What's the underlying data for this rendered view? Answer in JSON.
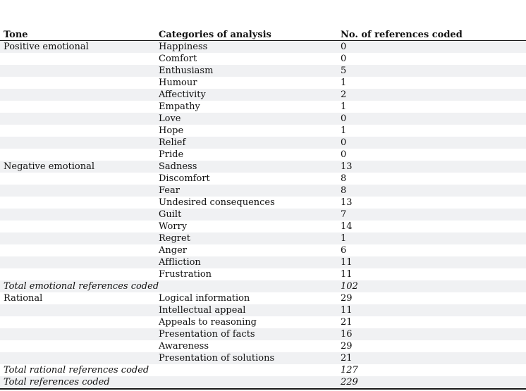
{
  "colors": {
    "row_shade": "#f0f1f3",
    "rule": "#1a1a1a"
  },
  "table": {
    "columns": [
      "Tone",
      "Categories of analysis",
      "No. of references coded"
    ],
    "rows": [
      {
        "tone": "Positive emotional",
        "category": "Happiness",
        "count": "0",
        "total": false
      },
      {
        "tone": "",
        "category": "Comfort",
        "count": "0",
        "total": false
      },
      {
        "tone": "",
        "category": "Enthusiasm",
        "count": "5",
        "total": false
      },
      {
        "tone": "",
        "category": "Humour",
        "count": "1",
        "total": false
      },
      {
        "tone": "",
        "category": "Affectivity",
        "count": "2",
        "total": false
      },
      {
        "tone": "",
        "category": "Empathy",
        "count": "1",
        "total": false
      },
      {
        "tone": "",
        "category": "Love",
        "count": "0",
        "total": false
      },
      {
        "tone": "",
        "category": "Hope",
        "count": "1",
        "total": false
      },
      {
        "tone": "",
        "category": "Relief",
        "count": "0",
        "total": false
      },
      {
        "tone": "",
        "category": "Pride",
        "count": "0",
        "total": false
      },
      {
        "tone": "Negative emotional",
        "category": "Sadness",
        "count": "13",
        "total": false
      },
      {
        "tone": "",
        "category": "Discomfort",
        "count": "8",
        "total": false
      },
      {
        "tone": "",
        "category": "Fear",
        "count": "8",
        "total": false
      },
      {
        "tone": "",
        "category": "Undesired consequences",
        "count": "13",
        "total": false
      },
      {
        "tone": "",
        "category": "Guilt",
        "count": "7",
        "total": false
      },
      {
        "tone": "",
        "category": "Worry",
        "count": "14",
        "total": false
      },
      {
        "tone": "",
        "category": "Regret",
        "count": "1",
        "total": false
      },
      {
        "tone": "",
        "category": "Anger",
        "count": "6",
        "total": false
      },
      {
        "tone": "",
        "category": "Affliction",
        "count": "11",
        "total": false
      },
      {
        "tone": "",
        "category": "Frustration",
        "count": "11",
        "total": false
      },
      {
        "tone": "Total emotional references coded",
        "category": "",
        "count": "102",
        "total": true
      },
      {
        "tone": "Rational",
        "category": "Logical information",
        "count": "29",
        "total": false
      },
      {
        "tone": "",
        "category": "Intellectual appeal",
        "count": "11",
        "total": false
      },
      {
        "tone": "",
        "category": "Appeals to reasoning",
        "count": "21",
        "total": false
      },
      {
        "tone": "",
        "category": "Presentation of facts",
        "count": "16",
        "total": false
      },
      {
        "tone": "",
        "category": "Awareness",
        "count": "29",
        "total": false
      },
      {
        "tone": "",
        "category": "Presentation of solutions",
        "count": "21",
        "total": false
      },
      {
        "tone": "Total rational references coded",
        "category": "",
        "count": "127",
        "total": true
      },
      {
        "tone": "Total references coded",
        "category": "",
        "count": "229",
        "total": true
      }
    ]
  }
}
